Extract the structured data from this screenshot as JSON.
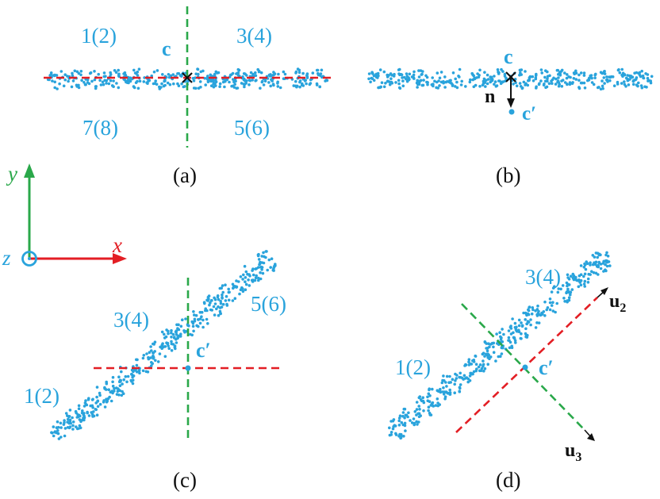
{
  "colors": {
    "points": "#29a3dc",
    "red_axis": "#e31e24",
    "green_axis": "#2aa84a",
    "black": "#111111",
    "label_blue": "#29a3dc"
  },
  "panel_a": {
    "caption": "(a)",
    "center_label": "c",
    "quadrants": {
      "q12": "1(2)",
      "q34": "3(4)",
      "q78": "7(8)",
      "q56": "5(6)"
    }
  },
  "panel_b": {
    "caption": "(b)",
    "center_label": "c",
    "normal_label": "n",
    "projected_label": "c′"
  },
  "axes": {
    "x": "x",
    "y": "y",
    "z": "z"
  },
  "panel_c": {
    "caption": "(c)",
    "center_label": "c′",
    "regions": {
      "r12": "1(2)",
      "r34": "3(4)",
      "r56": "5(6)"
    }
  },
  "panel_d": {
    "caption": "(d)",
    "center_label": "c′",
    "regions": {
      "r12": "1(2)",
      "r34": "3(4)"
    },
    "u2": {
      "base": "u",
      "sub": "2"
    },
    "u3": {
      "base": "u",
      "sub": "3"
    }
  }
}
